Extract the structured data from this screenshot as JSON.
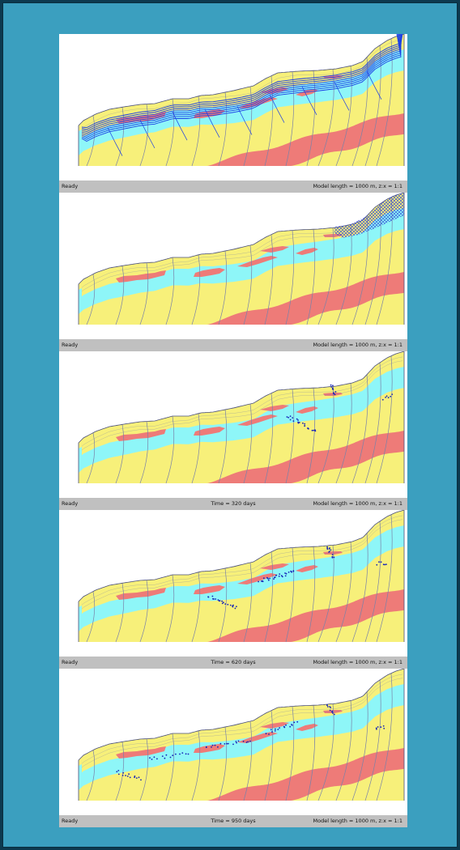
{
  "panels": [
    {
      "status_left": "Ready",
      "status_mid": "",
      "status_right": "Model length = 1000 m, z:x = 1:1",
      "overlay": "flownet"
    },
    {
      "status_left": "Ready",
      "status_mid": "",
      "status_right": "Model length = 1000 m, z:x = 1:1",
      "overlay": "hatch"
    },
    {
      "status_left": "Ready",
      "status_mid": "Time = 320 days",
      "status_right": "Model length = 1000 m, z:x = 1:1",
      "overlay": "particles"
    },
    {
      "status_left": "Ready",
      "status_mid": "Time = 620 days",
      "status_right": "Model length = 1000 m, z:x = 1:1",
      "overlay": "particles"
    },
    {
      "status_left": "Ready",
      "status_mid": "Time = 950 days",
      "status_right": "Model length = 1000 m, z:x = 1:1",
      "overlay": "particles"
    }
  ],
  "colors": {
    "background": "#3b9fbf",
    "layer_yellow": "#f7f07a",
    "layer_cyan": "#8ef6f8",
    "layer_red": "#ee7b78",
    "grid_lines": "#7a82a8",
    "flow_lines": "#1a3ee6",
    "particles": "#1422b8",
    "status_bar": "#c0c0c0"
  }
}
